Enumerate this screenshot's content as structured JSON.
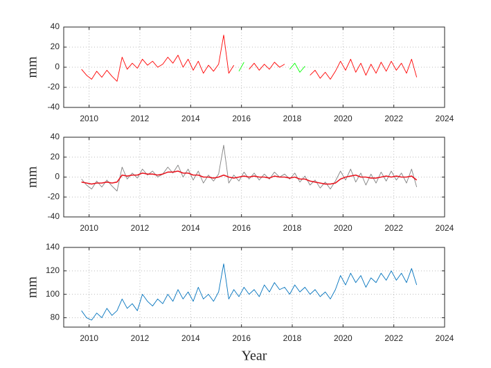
{
  "chart_data": [
    {
      "type": "line",
      "ylabel": "mm",
      "x": [
        2009.7,
        2009.9,
        2010.1,
        2010.3,
        2010.5,
        2010.7,
        2010.9,
        2011.1,
        2011.3,
        2011.5,
        2011.7,
        2011.9,
        2012.1,
        2012.3,
        2012.5,
        2012.7,
        2012.9,
        2013.1,
        2013.3,
        2013.5,
        2013.7,
        2013.9,
        2014.1,
        2014.3,
        2014.5,
        2014.7,
        2014.9,
        2015.1,
        2015.3,
        2015.5,
        2015.7,
        2015.9,
        2016.1,
        2016.3,
        2016.5,
        2016.7,
        2016.9,
        2017.1,
        2017.3,
        2017.5,
        2017.7,
        2017.9,
        2018.1,
        2018.3,
        2018.5,
        2018.7,
        2018.9,
        2019.1,
        2019.3,
        2019.5,
        2019.7,
        2019.9,
        2020.1,
        2020.3,
        2020.5,
        2020.7,
        2020.9,
        2021.1,
        2021.3,
        2021.5,
        2021.7,
        2021.9,
        2022.1,
        2022.3,
        2022.5,
        2022.7,
        2022.9
      ],
      "series": [
        {
          "color": "#ff0000",
          "values": [
            -2,
            -8,
            -12,
            -4,
            -10,
            -3,
            -9,
            -14,
            10,
            -2,
            4,
            -1,
            8,
            2,
            6,
            0,
            3,
            10,
            4,
            12,
            0,
            8,
            -3,
            6,
            -6,
            2,
            -4,
            3,
            32,
            -6,
            2,
            null,
            null,
            -2,
            4,
            -3,
            3,
            -2,
            5,
            0,
            3,
            null,
            null,
            null,
            null,
            -8,
            -3,
            -11,
            -5,
            -12,
            -4,
            6,
            -3,
            8,
            -5,
            4,
            -8,
            3,
            -6,
            5,
            -4,
            6,
            -3,
            4,
            -6,
            8,
            -10
          ]
        },
        {
          "color": "#00ff00",
          "values": [
            null,
            null,
            null,
            null,
            null,
            null,
            null,
            null,
            null,
            null,
            null,
            null,
            null,
            null,
            null,
            null,
            null,
            null,
            null,
            null,
            null,
            null,
            null,
            null,
            null,
            null,
            null,
            null,
            null,
            null,
            null,
            -4,
            5,
            null,
            null,
            null,
            null,
            null,
            null,
            null,
            null,
            -2,
            4,
            -5,
            1,
            null,
            null,
            null,
            null,
            null,
            null,
            null,
            null,
            null,
            null,
            null,
            null,
            null,
            null,
            null,
            null,
            null,
            null,
            null,
            null,
            null,
            null
          ]
        }
      ],
      "xlim": [
        2009,
        2024
      ],
      "xticks": [
        2010,
        2012,
        2014,
        2016,
        2018,
        2020,
        2022,
        2024
      ],
      "ylim": [
        -40,
        40
      ],
      "yticks": [
        -40,
        -20,
        0,
        20,
        40
      ],
      "grid": true
    },
    {
      "type": "line",
      "ylabel": "mm",
      "x": [
        2009.7,
        2009.9,
        2010.1,
        2010.3,
        2010.5,
        2010.7,
        2010.9,
        2011.1,
        2011.3,
        2011.5,
        2011.7,
        2011.9,
        2012.1,
        2012.3,
        2012.5,
        2012.7,
        2012.9,
        2013.1,
        2013.3,
        2013.5,
        2013.7,
        2013.9,
        2014.1,
        2014.3,
        2014.5,
        2014.7,
        2014.9,
        2015.1,
        2015.3,
        2015.5,
        2015.7,
        2015.9,
        2016.1,
        2016.3,
        2016.5,
        2016.7,
        2016.9,
        2017.1,
        2017.3,
        2017.5,
        2017.7,
        2017.9,
        2018.1,
        2018.3,
        2018.5,
        2018.7,
        2018.9,
        2019.1,
        2019.3,
        2019.5,
        2019.7,
        2019.9,
        2020.1,
        2020.3,
        2020.5,
        2020.7,
        2020.9,
        2021.1,
        2021.3,
        2021.5,
        2021.7,
        2021.9,
        2022.1,
        2022.3,
        2022.5,
        2022.7,
        2022.9
      ],
      "series": [
        {
          "color": "#808080",
          "values": [
            -2,
            -8,
            -12,
            -4,
            -10,
            -3,
            -9,
            -14,
            10,
            -2,
            4,
            -1,
            8,
            2,
            6,
            0,
            3,
            10,
            4,
            12,
            0,
            8,
            -3,
            6,
            -6,
            2,
            -4,
            3,
            32,
            -6,
            2,
            -4,
            5,
            -2,
            4,
            -3,
            3,
            -2,
            5,
            0,
            3,
            -2,
            4,
            -5,
            1,
            -8,
            -3,
            -11,
            -5,
            -12,
            -4,
            6,
            -3,
            8,
            -5,
            4,
            -8,
            3,
            -6,
            5,
            -4,
            6,
            -3,
            4,
            -6,
            8,
            -10
          ]
        },
        {
          "color": "#e8141e",
          "values": [
            -5,
            -6,
            -7,
            -6,
            -6,
            -5,
            -6,
            -5,
            2,
            1,
            2,
            2,
            4,
            3,
            3,
            2,
            3,
            5,
            5,
            6,
            4,
            4,
            2,
            2,
            0,
            0,
            -1,
            0,
            2,
            0,
            -1,
            0,
            1,
            0,
            1,
            0,
            0,
            -1,
            1,
            0,
            0,
            -1,
            0,
            -2,
            -2,
            -4,
            -5,
            -6,
            -7,
            -7,
            -6,
            -2,
            0,
            1,
            2,
            0,
            0,
            -1,
            -1,
            0,
            1,
            0,
            1,
            0,
            0,
            1,
            -3
          ]
        }
      ],
      "xlim": [
        2009,
        2024
      ],
      "xticks": [
        2010,
        2012,
        2014,
        2016,
        2018,
        2020,
        2022,
        2024
      ],
      "ylim": [
        -40,
        40
      ],
      "yticks": [
        -40,
        -20,
        0,
        20,
        40
      ],
      "grid": true
    },
    {
      "type": "line",
      "ylabel": "mm",
      "xlabel": "Year",
      "x": [
        2009.7,
        2009.9,
        2010.1,
        2010.3,
        2010.5,
        2010.7,
        2010.9,
        2011.1,
        2011.3,
        2011.5,
        2011.7,
        2011.9,
        2012.1,
        2012.3,
        2012.5,
        2012.7,
        2012.9,
        2013.1,
        2013.3,
        2013.5,
        2013.7,
        2013.9,
        2014.1,
        2014.3,
        2014.5,
        2014.7,
        2014.9,
        2015.1,
        2015.3,
        2015.5,
        2015.7,
        2015.9,
        2016.1,
        2016.3,
        2016.5,
        2016.7,
        2016.9,
        2017.1,
        2017.3,
        2017.5,
        2017.7,
        2017.9,
        2018.1,
        2018.3,
        2018.5,
        2018.7,
        2018.9,
        2019.1,
        2019.3,
        2019.5,
        2019.7,
        2019.9,
        2020.1,
        2020.3,
        2020.5,
        2020.7,
        2020.9,
        2021.1,
        2021.3,
        2021.5,
        2021.7,
        2021.9,
        2022.1,
        2022.3,
        2022.5,
        2022.7,
        2022.9
      ],
      "series": [
        {
          "color": "#0072bd",
          "values": [
            86,
            80,
            78,
            84,
            80,
            88,
            82,
            86,
            96,
            88,
            92,
            86,
            100,
            94,
            90,
            96,
            92,
            100,
            94,
            104,
            96,
            102,
            94,
            106,
            96,
            100,
            94,
            102,
            126,
            96,
            104,
            98,
            106,
            100,
            104,
            98,
            108,
            102,
            110,
            104,
            106,
            100,
            108,
            102,
            106,
            100,
            104,
            98,
            102,
            96,
            104,
            116,
            108,
            118,
            110,
            116,
            106,
            114,
            110,
            118,
            112,
            120,
            112,
            118,
            110,
            122,
            108
          ]
        }
      ],
      "xlim": [
        2009,
        2024
      ],
      "xticks": [
        2010,
        2012,
        2014,
        2016,
        2018,
        2020,
        2022,
        2024
      ],
      "ylim": [
        72,
        140
      ],
      "yticks": [
        80,
        100,
        120,
        140
      ],
      "grid": true
    }
  ]
}
